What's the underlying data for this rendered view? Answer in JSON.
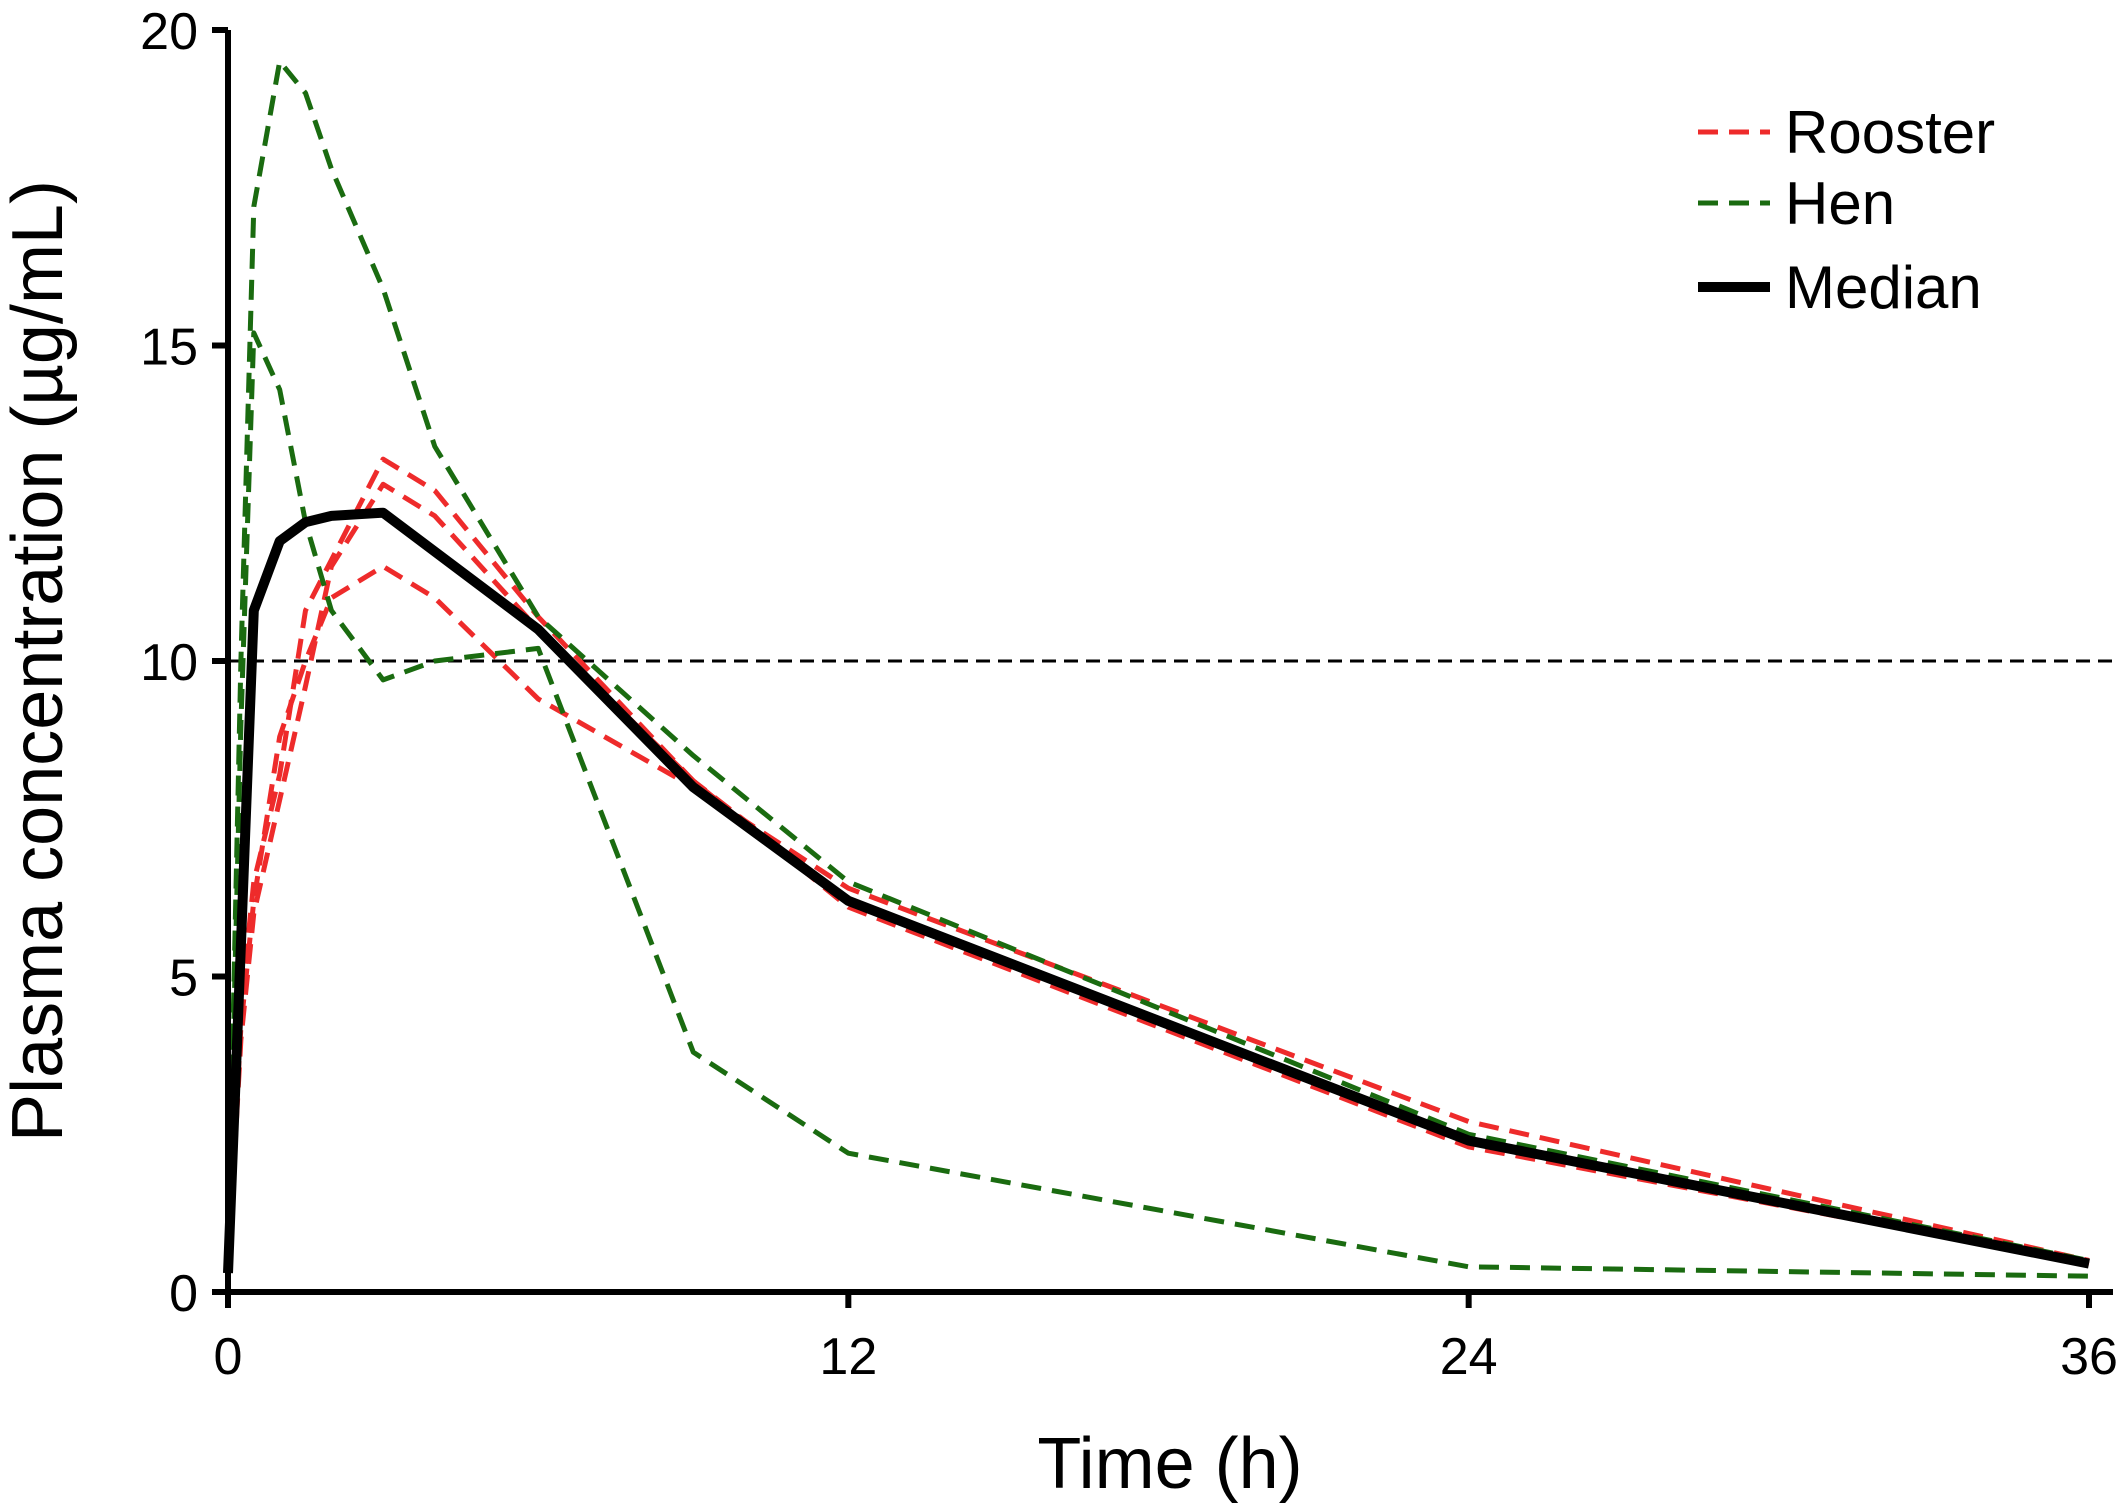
{
  "chart_data": {
    "type": "line",
    "title": "",
    "xlabel": "Time (h)",
    "ylabel": "Plasma concentration (µg/mL)",
    "xlim": [
      0,
      36
    ],
    "ylim": [
      0,
      20
    ],
    "xticks": [
      "0",
      "12",
      "24",
      "36"
    ],
    "yticks": [
      "0",
      "5",
      "10",
      "15",
      "20"
    ],
    "grid": false,
    "legend_position": "top-right",
    "reference_line": {
      "y": 10,
      "style": "dashed",
      "color": "#000000"
    },
    "legend": [
      {
        "label": "Rooster",
        "color": "#ee2b2b",
        "style": "dashed"
      },
      {
        "label": "Hen",
        "color": "#1a6b10",
        "style": "dashed"
      },
      {
        "label": "Median",
        "color": "#000000",
        "style": "solid"
      }
    ],
    "series": [
      {
        "group": "Rooster",
        "color": "#ee2b2b",
        "style": "dashed",
        "x": [
          0,
          0.25,
          0.5,
          1,
          1.5,
          2,
          3,
          4,
          6,
          9,
          12,
          24,
          36
        ],
        "y": [
          0.3,
          4.5,
          6.5,
          8.2,
          10.8,
          11.6,
          13.2,
          12.7,
          10.7,
          8.1,
          6.1,
          2.3,
          0.45
        ]
      },
      {
        "group": "Rooster",
        "color": "#ee2b2b",
        "style": "dashed",
        "x": [
          0,
          0.25,
          0.5,
          1,
          1.5,
          2,
          3,
          4,
          6,
          9,
          12,
          24,
          36
        ],
        "y": [
          0.4,
          4.2,
          6.2,
          8.8,
          10.0,
          11.0,
          11.5,
          11.0,
          9.4,
          8.0,
          6.4,
          2.7,
          0.5
        ]
      },
      {
        "group": "Rooster",
        "color": "#ee2b2b",
        "style": "dashed",
        "x": [
          0,
          0.25,
          0.5,
          1,
          1.5,
          2,
          3,
          4,
          6,
          9,
          12,
          24,
          36
        ],
        "y": [
          0.3,
          4.0,
          6.0,
          7.8,
          9.6,
          11.5,
          12.8,
          12.3,
          10.5,
          8.1,
          6.2,
          2.4,
          0.45
        ]
      },
      {
        "group": "Hen",
        "color": "#1a6b10",
        "style": "dashed",
        "x": [
          0,
          0.25,
          0.5,
          1,
          1.5,
          2,
          3,
          4,
          6,
          9,
          12,
          24,
          36
        ],
        "y": [
          0.5,
          10.0,
          17.2,
          19.5,
          19.0,
          17.8,
          15.9,
          13.4,
          10.7,
          8.5,
          6.5,
          2.5,
          0.5
        ]
      },
      {
        "group": "Hen",
        "color": "#1a6b10",
        "style": "dashed",
        "x": [
          0,
          0.25,
          0.5,
          1,
          1.5,
          2,
          3,
          4,
          6,
          9,
          12,
          24,
          36
        ],
        "y": [
          0.4,
          9.0,
          15.2,
          14.3,
          12.2,
          10.8,
          9.7,
          10.0,
          10.2,
          3.8,
          2.2,
          0.4,
          0.25
        ]
      },
      {
        "name": "Median",
        "color": "#000000",
        "style": "solid",
        "x": [
          0,
          0.25,
          0.5,
          1,
          1.5,
          2,
          3,
          6,
          9,
          12,
          24,
          36
        ],
        "y": [
          0.3,
          5.5,
          10.8,
          11.9,
          12.2,
          12.3,
          12.35,
          10.5,
          8.0,
          6.2,
          2.4,
          0.45
        ]
      }
    ]
  }
}
